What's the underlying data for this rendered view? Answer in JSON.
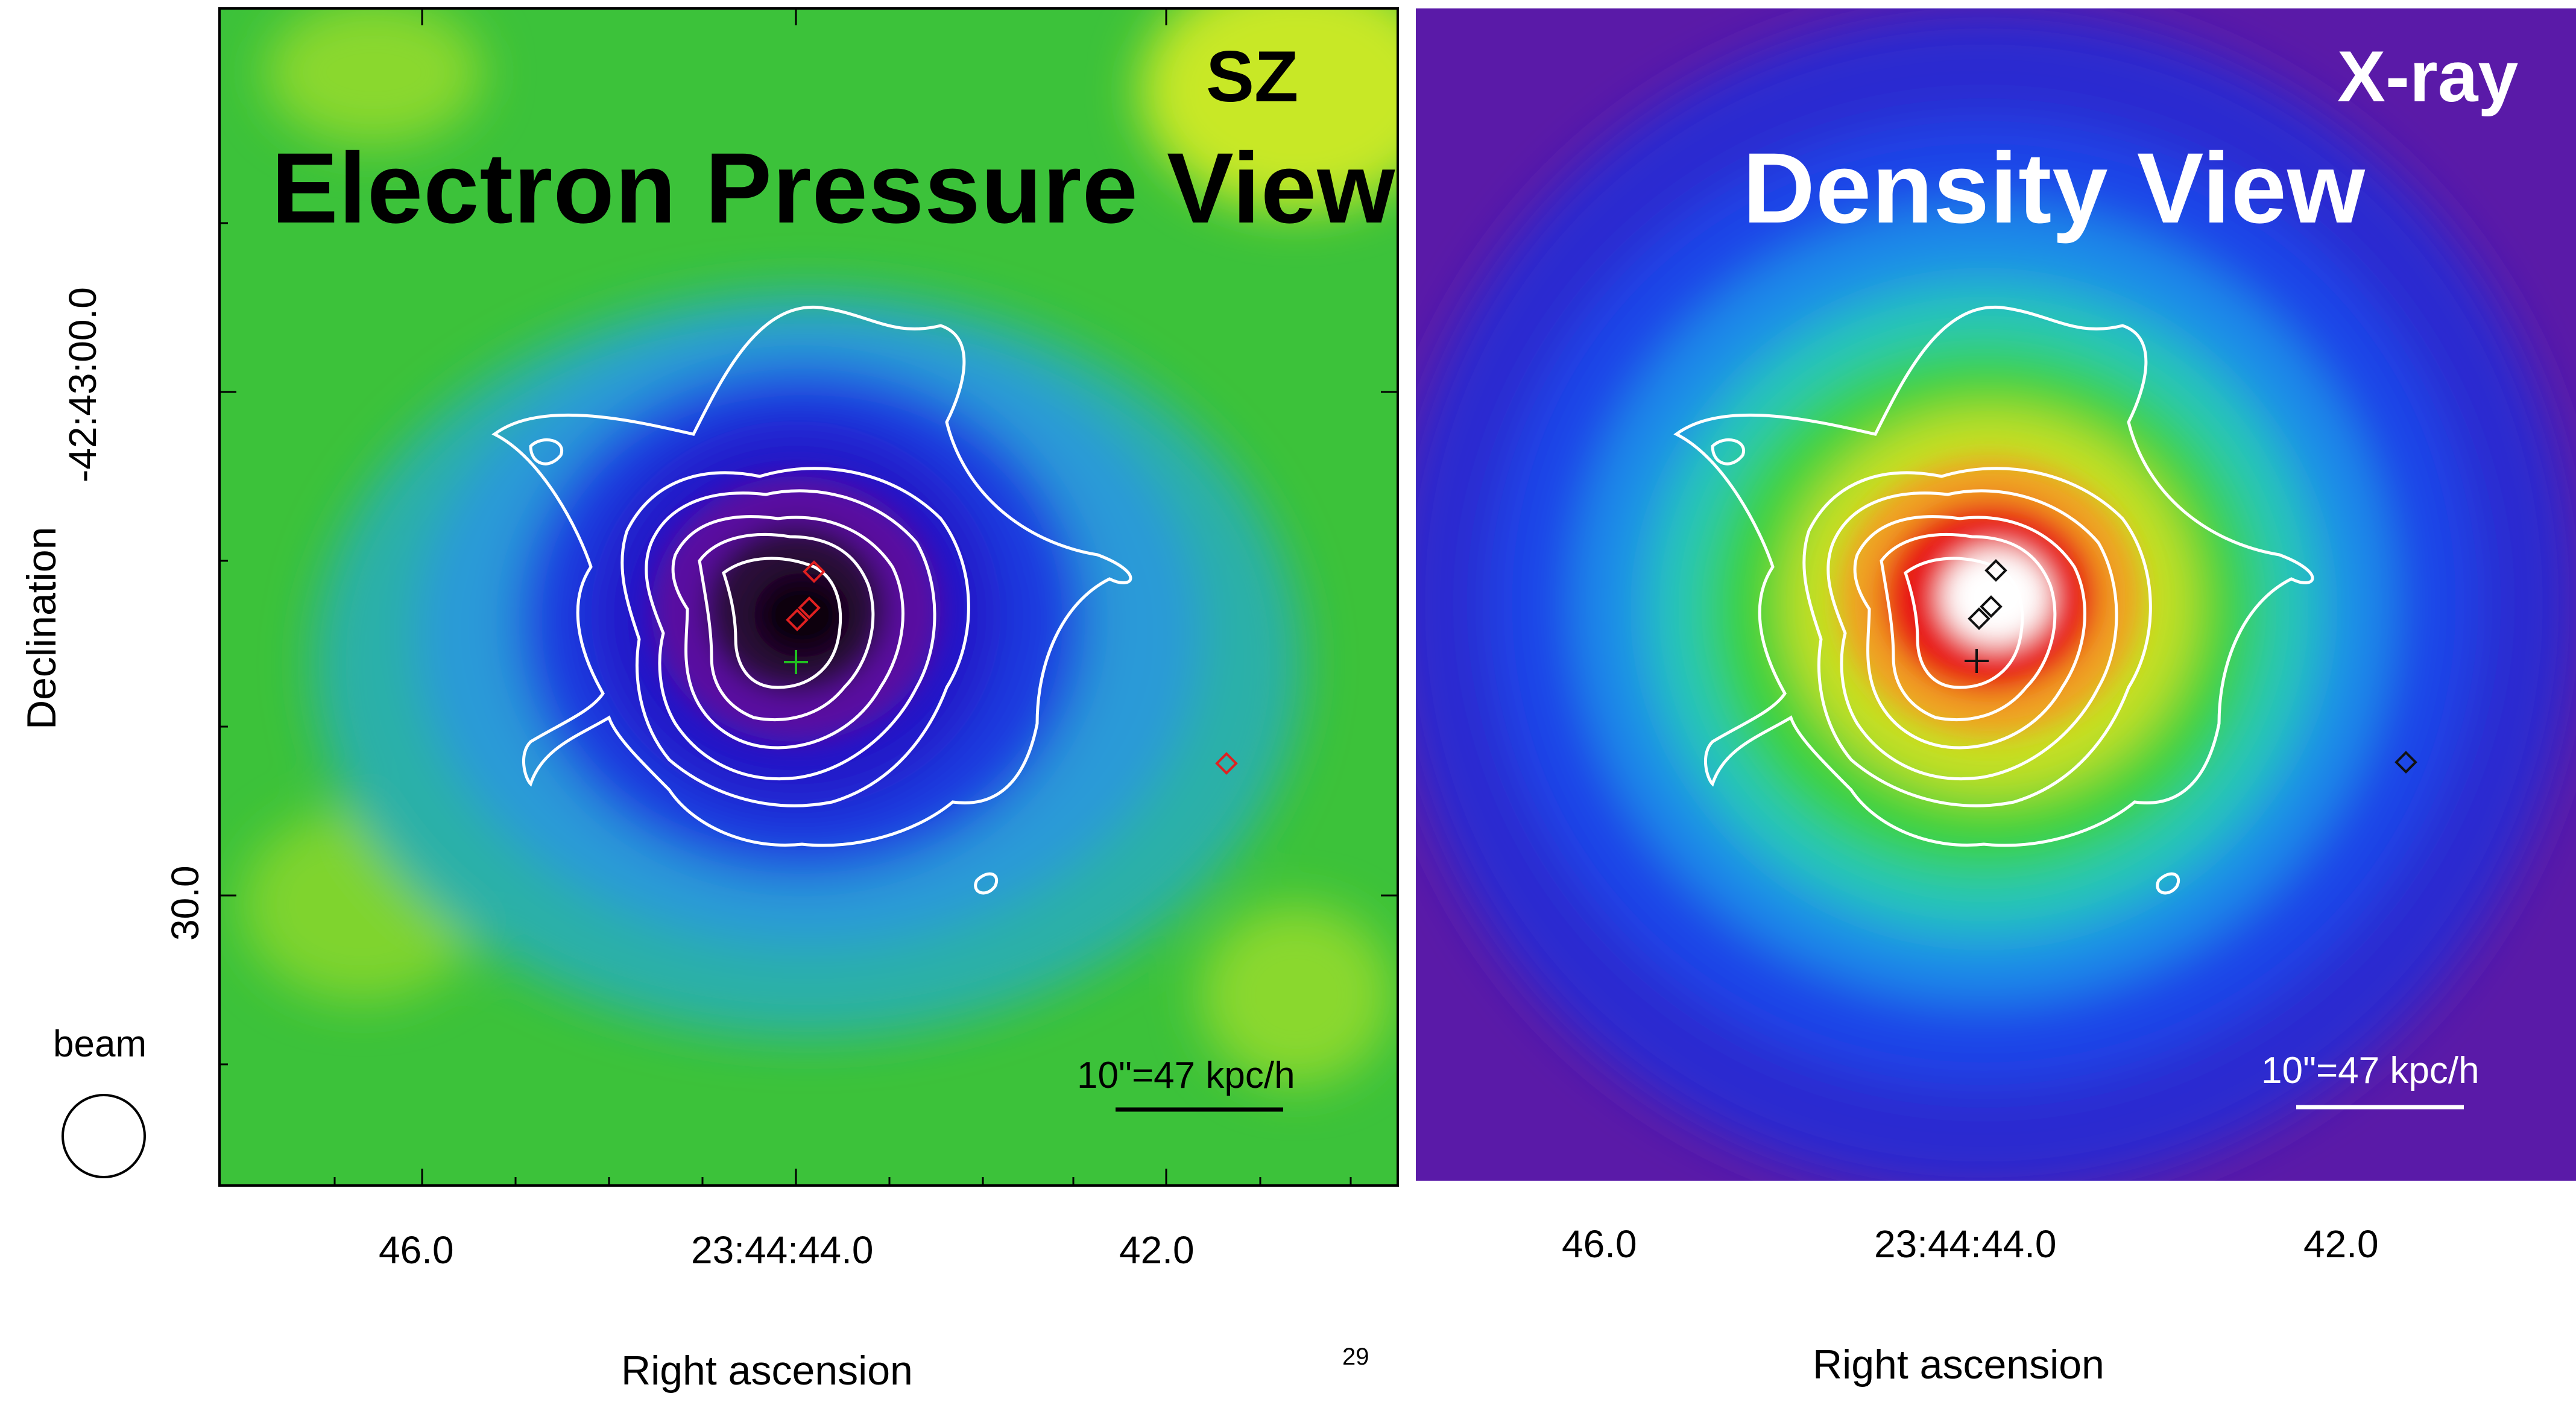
{
  "left_panel": {
    "corner_label": "SZ",
    "title": "Electron Pressure View",
    "scale_label": "10\"=47 kpc/h",
    "x_ticks": [
      "46.0",
      "23:44:44.0",
      "42.0"
    ],
    "y_ticks": [
      "-42:43:00.0",
      "30.0"
    ],
    "x_axis_label": "Right ascension",
    "y_axis_label": "Declination",
    "beam_label": "beam",
    "colors": {
      "background": "#35c23a",
      "core": "#1a0a1e",
      "contours": "#ffffff",
      "markers": "#e02020",
      "center_cross": "#20c020"
    }
  },
  "right_panel": {
    "corner_label": "X-ray",
    "title": "Density View",
    "scale_label": "10\"=47 kpc/h",
    "x_ticks": [
      "46.0",
      "23:44:44.0",
      "42.0"
    ],
    "x_axis_label": "Right ascension",
    "colors": {
      "background": "#2a1a9a",
      "core": "#ffffff",
      "contours": "#ffffff",
      "markers": "#101010",
      "center_cross": "#101010"
    }
  },
  "page_number": "29"
}
